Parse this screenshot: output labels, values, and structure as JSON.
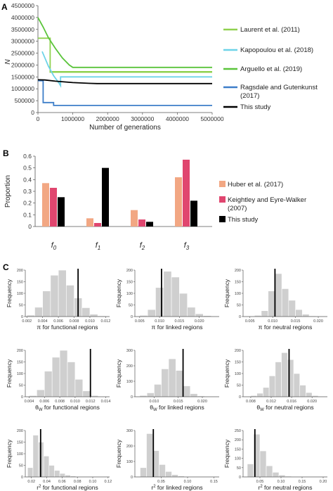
{
  "panels": {
    "a": {
      "letter": "A",
      "chart_data": {
        "type": "line",
        "ylabel": "N",
        "xlabel": "Number of generations",
        "xlim": [
          0,
          5000000
        ],
        "ylim": [
          0,
          4500000
        ],
        "x_ticks": [
          0,
          1000000,
          2000000,
          3000000,
          4000000,
          5000000
        ],
        "x_tick_labels": [
          "0",
          "1000000",
          "2000000",
          "3000000",
          "4000000",
          "5000000"
        ],
        "y_ticks": [
          0,
          500000,
          1000000,
          1500000,
          2000000,
          2500000,
          3000000,
          3500000,
          4000000,
          4500000
        ],
        "y_tick_labels": [
          "0",
          "500000",
          "1000000",
          "1500000",
          "2000000",
          "2500000",
          "3000000",
          "3500000",
          "4000000",
          "4500000"
        ],
        "grid": false,
        "legend_position": "right",
        "series": [
          {
            "name": "Laurent et al. (2011)",
            "color": "#8fd14f",
            "x": [
              0,
              350000,
              350000,
              5000000,
              null,
              350000,
              350000,
              5000000
            ],
            "y": [
              3130000,
              3130000,
              1720000,
              1720000,
              null,
              3130000,
              1700000,
              1700000
            ]
          },
          {
            "name": "Kapopoulou et al. (2018)",
            "color": "#6dd3e8",
            "x": [
              120000,
              200000,
              300000,
              450000,
              600000,
              650000,
              650000,
              5000000
            ],
            "y": [
              2570000,
              2300000,
              1950000,
              1550000,
              1250000,
              1130000,
              1500000,
              1500000
            ]
          },
          {
            "name": "Arguello et al. (2019)",
            "color": "#5ac43a",
            "x": [
              0,
              150000,
              300000,
              500000,
              700000,
              900000,
              1000000,
              5000000
            ],
            "y": [
              4000000,
              3600000,
              3150000,
              2700000,
              2300000,
              2000000,
              1900000,
              1900000
            ]
          },
          {
            "name": "Ragsdale and Gutenkunst (2017)",
            "color": "#3d7ec9",
            "x": [
              0,
              150000,
              150000,
              450000,
              450000,
              5000000
            ],
            "y": [
              1340000,
              1340000,
              420000,
              420000,
              300000,
              300000
            ]
          },
          {
            "name": "This study",
            "color": "#000000",
            "x": [
              0,
              200000,
              500000,
              1000000,
              1500000,
              1700000,
              5000000
            ],
            "y": [
              1380000,
              1370000,
              1320000,
              1260000,
              1230000,
              1220000,
              1220000
            ]
          }
        ]
      }
    },
    "b": {
      "letter": "B",
      "chart_data": {
        "type": "bar",
        "ylabel": "Proportion",
        "ylim": [
          0,
          0.6
        ],
        "y_ticks": [
          0,
          0.1,
          0.2,
          0.3,
          0.4,
          0.5,
          0.6
        ],
        "y_tick_labels": [
          "0",
          "0.1",
          "0.2",
          "0.3",
          "0.4",
          "0.5",
          "0.6"
        ],
        "categories": [
          {
            "base": "f",
            "sub": "0"
          },
          {
            "base": "f",
            "sub": "1"
          },
          {
            "base": "f",
            "sub": "2"
          },
          {
            "base": "f",
            "sub": "3"
          }
        ],
        "legend_position": "right",
        "series": [
          {
            "name": "Huber et al. (2017)",
            "color": "#f2a783",
            "values": [
              0.37,
              0.07,
              0.14,
              0.42
            ]
          },
          {
            "name": "Keightley and Eyre-Walker (2007)",
            "color": "#e0466f",
            "values": [
              0.33,
              0.03,
              0.06,
              0.57
            ]
          },
          {
            "name": "This study",
            "color": "#000000",
            "values": [
              0.25,
              0.5,
              0.04,
              0.22
            ]
          }
        ]
      }
    },
    "c": {
      "letter": "C",
      "chart_data": [
        {
          "type": "histogram",
          "ylabel": "Frequency",
          "xlabel": "π for functional regions",
          "xlim": [
            0.0018,
            0.0125
          ],
          "ylim": [
            0,
            200
          ],
          "x_ticks": [
            0.002,
            0.004,
            0.006,
            0.008,
            0.01,
            0.012
          ],
          "x_tick_labels": [
            "0.002",
            "0.004",
            "0.006",
            "0.008",
            "0.010",
            "0.012"
          ],
          "y_ticks": [
            0,
            50,
            100,
            150,
            200
          ],
          "y_tick_labels": [
            "0",
            "50",
            "100",
            "150",
            "200"
          ],
          "bin_start": 0.002,
          "bin_width": 0.001,
          "counts": [
            6,
            40,
            110,
            178,
            200,
            135,
            80,
            38,
            10,
            3
          ],
          "observed": 0.0085
        },
        {
          "type": "histogram",
          "ylabel": "Frequency",
          "xlabel": "π for linked regions",
          "xlim": [
            0.0038,
            0.025
          ],
          "ylim": [
            0,
            200
          ],
          "x_ticks": [
            0.005,
            0.01,
            0.015,
            0.02
          ],
          "x_tick_labels": [
            "0.005",
            "0.010",
            "0.015",
            "0.020"
          ],
          "y_ticks": [
            0,
            50,
            100,
            150,
            200
          ],
          "y_tick_labels": [
            "0",
            "50",
            "100",
            "150",
            "200"
          ],
          "bin_start": 0.005,
          "bin_width": 0.002,
          "counts": [
            5,
            30,
            125,
            195,
            170,
            100,
            40,
            12,
            4
          ],
          "observed": 0.0105
        },
        {
          "type": "histogram",
          "ylabel": "Frequency",
          "xlabel": "π for neutral regions",
          "xlim": [
            0.0035,
            0.022
          ],
          "ylim": [
            0,
            200
          ],
          "x_ticks": [
            0.005,
            0.01,
            0.015,
            0.02
          ],
          "x_tick_labels": [
            "0.005",
            "0.010",
            "0.015",
            "0.020"
          ],
          "y_ticks": [
            0,
            50,
            100,
            150,
            200
          ],
          "y_tick_labels": [
            "0",
            "50",
            "100",
            "150",
            "200"
          ],
          "bin_start": 0.006,
          "bin_width": 0.0015,
          "counts": [
            5,
            25,
            110,
            185,
            120,
            70,
            30,
            10,
            3
          ],
          "observed": 0.0105
        },
        {
          "type": "histogram",
          "ylabel": "Frequency",
          "xlabel": "θ",
          "xlabel_sub": "W",
          "xlabel_suffix": " for functional regions",
          "xlim": [
            0.0035,
            0.0145
          ],
          "ylim": [
            0,
            200
          ],
          "x_ticks": [
            0.004,
            0.006,
            0.008,
            0.01,
            0.012,
            0.014
          ],
          "x_tick_labels": [
            "0.004",
            "0.006",
            "0.008",
            "0.010",
            "0.012",
            "0.014"
          ],
          "y_ticks": [
            0,
            50,
            100,
            150,
            200
          ],
          "y_tick_labels": [
            "0",
            "50",
            "100",
            "150",
            "200"
          ],
          "bin_start": 0.004,
          "bin_width": 0.001,
          "counts": [
            5,
            30,
            110,
            170,
            200,
            150,
            75,
            25,
            5
          ],
          "observed": 0.012
        },
        {
          "type": "histogram",
          "ylabel": "Frequency",
          "xlabel": "θ",
          "xlabel_sub": "W",
          "xlabel_suffix": " for linked regions",
          "xlim": [
            0.006,
            0.0235
          ],
          "ylim": [
            0,
            300
          ],
          "x_ticks": [
            0.01,
            0.015,
            0.02
          ],
          "x_tick_labels": [
            "0.010",
            "0.015",
            "0.020"
          ],
          "y_ticks": [
            0,
            100,
            200,
            300
          ],
          "y_tick_labels": [
            "0",
            "100",
            "200",
            "300"
          ],
          "bin_start": 0.007,
          "bin_width": 0.0015,
          "counts": [
            8,
            25,
            80,
            180,
            245,
            170,
            70,
            20,
            5
          ],
          "observed": 0.016
        },
        {
          "type": "histogram",
          "ylabel": "Frequency",
          "xlabel": "θ",
          "xlabel_sub": "W",
          "xlabel_suffix": " for neutral regions",
          "xlim": [
            0.0065,
            0.023
          ],
          "ylim": [
            0,
            200
          ],
          "x_ticks": [
            0.008,
            0.012,
            0.016,
            0.02
          ],
          "x_tick_labels": [
            "0.008",
            "0.012",
            "0.016",
            "0.020"
          ],
          "y_ticks": [
            0,
            50,
            100,
            150,
            200
          ],
          "y_tick_labels": [
            "0",
            "50",
            "100",
            "150",
            "200"
          ],
          "bin_start": 0.008,
          "bin_width": 0.0012,
          "counts": [
            5,
            15,
            40,
            90,
            150,
            190,
            160,
            100,
            50,
            18,
            5
          ],
          "observed": 0.0155
        },
        {
          "type": "histogram",
          "ylabel": "Frequency",
          "xlabel": "r",
          "xlabel_sup": "2",
          "xlabel_suffix": " for functional regions",
          "xlim": [
            0.012,
            0.122
          ],
          "ylim": [
            0,
            200
          ],
          "x_ticks": [
            0.02,
            0.04,
            0.06,
            0.08,
            0.1,
            0.12
          ],
          "x_tick_labels": [
            "0.02",
            "0.04",
            "0.06",
            "0.08",
            "0.10",
            "0.12"
          ],
          "y_ticks": [
            0,
            50,
            100,
            150,
            200
          ],
          "y_tick_labels": [
            "0",
            "50",
            "100",
            "150",
            "200"
          ],
          "bin_start": 0.015,
          "bin_width": 0.007,
          "counts": [
            40,
            180,
            150,
            90,
            50,
            28,
            15,
            8,
            4,
            2
          ],
          "observed": 0.032
        },
        {
          "type": "histogram",
          "ylabel": "Frequency",
          "xlabel": "r",
          "xlabel_sup": "2",
          "xlabel_suffix": " for linked regions",
          "xlim": [
            0.0,
            0.16
          ],
          "ylim": [
            0,
            300
          ],
          "x_ticks": [
            0.05,
            0.1,
            0.15
          ],
          "x_tick_labels": [
            "0.05",
            "0.10",
            "0.15"
          ],
          "y_ticks": [
            0,
            100,
            200,
            300
          ],
          "y_tick_labels": [
            "0",
            "100",
            "200",
            "300"
          ],
          "bin_start": 0.01,
          "bin_width": 0.012,
          "counts": [
            60,
            280,
            170,
            80,
            35,
            15,
            6,
            3,
            1
          ],
          "observed": 0.035
        },
        {
          "type": "histogram",
          "ylabel": "Frequency",
          "xlabel": "r",
          "xlabel_sup": "2",
          "xlabel_suffix": " for neutral regions",
          "xlim": [
            0.01,
            0.21
          ],
          "ylim": [
            0,
            250
          ],
          "x_ticks": [
            0.05,
            0.1,
            0.15,
            0.2
          ],
          "x_tick_labels": [
            "0.05",
            "0.10",
            "0.15",
            "0.20"
          ],
          "y_ticks": [
            0,
            50,
            100,
            150,
            200,
            250
          ],
          "y_tick_labels": [
            "0",
            "50",
            "100",
            "150",
            "200",
            "250"
          ],
          "bin_start": 0.02,
          "bin_width": 0.015,
          "counts": [
            70,
            230,
            140,
            60,
            25,
            10,
            4,
            2
          ],
          "observed": 0.038
        }
      ]
    }
  }
}
